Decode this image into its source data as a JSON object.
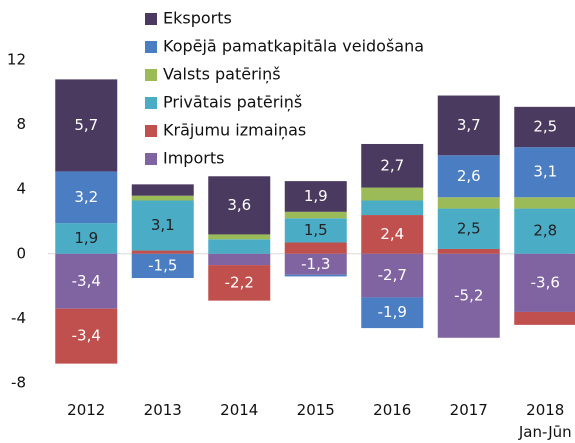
{
  "chart_data": {
    "type": "stacked_bar",
    "categories": [
      "2012",
      "2013",
      "2014",
      "2015",
      "2016",
      "2017",
      "2018\nJan-Jūn"
    ],
    "ylim": [
      -8,
      12
    ],
    "yticks": [
      -8,
      -4,
      0,
      4,
      8,
      12
    ],
    "series": [
      {
        "name": "Eksports",
        "color": "#4b3a5f",
        "values": [
          5.7,
          0.7,
          3.6,
          1.9,
          2.7,
          3.7,
          2.5
        ],
        "value_labels": [
          "5,7",
          null,
          "3,6",
          "1,9",
          "2,7",
          "3,7",
          "2,5"
        ]
      },
      {
        "name": "Kopējā pamatkapitāla veidošana",
        "color": "#4a7dc2",
        "values": [
          3.2,
          -1.5,
          0,
          -0.1,
          -1.9,
          2.6,
          3.1
        ],
        "value_labels": [
          "3,2",
          "-1,5",
          null,
          null,
          "-1,9",
          "2,6",
          "3,1"
        ]
      },
      {
        "name": "Valsts patēriņš",
        "color": "#9bbb59",
        "values": [
          0,
          0.3,
          0.3,
          0.4,
          0.8,
          0.7,
          0.7
        ],
        "value_labels": [
          null,
          null,
          null,
          null,
          null,
          null,
          null
        ]
      },
      {
        "name": "Privātais patēriņš",
        "color": "#4bacc6",
        "values": [
          1.9,
          3.1,
          0.9,
          1.5,
          0.9,
          2.5,
          2.8
        ],
        "value_labels": [
          "1,9",
          "3,1",
          null,
          "1,5",
          null,
          "2,5",
          "2,8"
        ]
      },
      {
        "name": "Krājumu izmaiņas",
        "color": "#c0504d",
        "values": [
          -3.4,
          0.2,
          -2.2,
          0.7,
          2.4,
          0.3,
          -0.8
        ],
        "value_labels": [
          "-3,4",
          null,
          "-2,2",
          null,
          "2,4",
          null,
          null
        ]
      },
      {
        "name": "Imports",
        "color": "#8064a2",
        "values": [
          -3.4,
          0,
          -0.7,
          -1.3,
          -2.7,
          -5.2,
          -3.6
        ],
        "value_labels": [
          "-3,4",
          null,
          null,
          "-1,3",
          "-2,7",
          "-5,2",
          "-3,6"
        ]
      }
    ]
  }
}
